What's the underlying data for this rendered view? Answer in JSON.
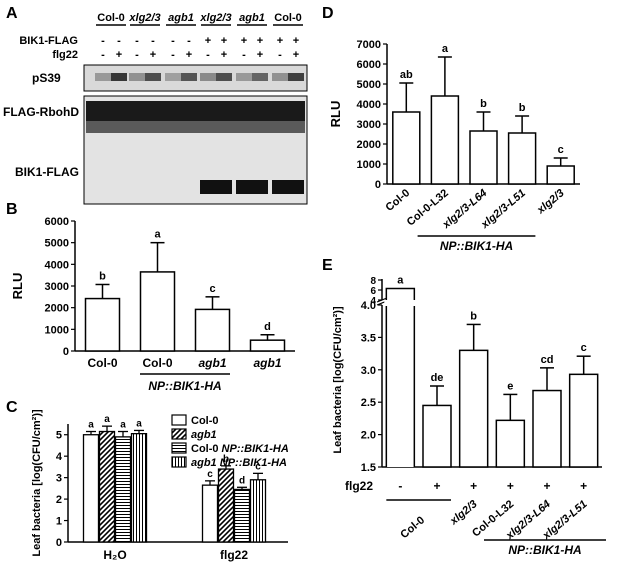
{
  "panels": {
    "A": {
      "letter": "A",
      "genotypes": [
        "Col-0",
        "xlg2/3",
        "agb1",
        "xlg2/3",
        "agb1",
        "Col-0"
      ],
      "genotype_italic": [
        false,
        true,
        true,
        true,
        true,
        false
      ],
      "rows": [
        {
          "label": "BIK1-FLAG",
          "signs": [
            "-",
            "-",
            "-",
            "-",
            "-",
            "-",
            "+",
            "+",
            "+",
            "+",
            "+",
            "+"
          ]
        },
        {
          "label": "flg22",
          "signs": [
            "-",
            "+",
            "-",
            "+",
            "-",
            "+",
            "-",
            "+",
            "-",
            "+",
            "-",
            "+"
          ]
        }
      ],
      "blot_labels": [
        "pS39",
        "FLAG-RbohD",
        "BIK1-FLAG"
      ]
    },
    "B": {
      "letter": "B",
      "chart_data": {
        "type": "bar",
        "ylabel": "RLU",
        "ylim": [
          0,
          6000
        ],
        "yticks": [
          0,
          1000,
          2000,
          3000,
          4000,
          5000,
          6000
        ],
        "categories": [
          "Col-0",
          "Col-0",
          "agb1",
          "agb1"
        ],
        "category_italic": [
          false,
          false,
          true,
          true
        ],
        "values": [
          2420,
          3650,
          1920,
          500
        ],
        "errors": [
          650,
          1350,
          580,
          250
        ],
        "letters": [
          "b",
          "a",
          "c",
          "d"
        ],
        "group_label": "NP::BIK1-HA"
      }
    },
    "C": {
      "letter": "C",
      "chart_data": {
        "type": "bar",
        "ylabel": "Leaf bacteria [log(CFU/cm²)]",
        "ylim": [
          0,
          5.5
        ],
        "yticks": [
          0,
          1,
          2,
          3,
          4,
          5
        ],
        "categories": [
          "H₂O",
          "flg22"
        ],
        "series": [
          {
            "name": "Col-0",
            "values": [
              5.0,
              2.65
            ],
            "errors": [
              0.15,
              0.2
            ],
            "letters": [
              "a",
              "c"
            ]
          },
          {
            "name": "agb1",
            "values": [
              5.15,
              3.4
            ],
            "errors": [
              0.25,
              0.15
            ],
            "letters": [
              "a",
              "b"
            ]
          },
          {
            "name": "Col-0 NP::BIK1-HA",
            "values": [
              4.9,
              2.45
            ],
            "errors": [
              0.25,
              0.1
            ],
            "letters": [
              "a",
              "d"
            ]
          },
          {
            "name": "agb1 NP::BIK1-HA",
            "values": [
              5.05,
              2.9
            ],
            "errors": [
              0.15,
              0.3
            ],
            "letters": [
              "a",
              "c"
            ]
          }
        ],
        "legend_placement": "top-right"
      }
    },
    "D": {
      "letter": "D",
      "chart_data": {
        "type": "bar",
        "ylabel": "RLU",
        "ylim": [
          0,
          7000
        ],
        "yticks": [
          0,
          1000,
          2000,
          3000,
          4000,
          5000,
          6000,
          7000
        ],
        "categories": [
          "Col-0",
          "Col-0-L32",
          "xlg2/3-L64",
          "xlg2/3-L51",
          "xlg2/3"
        ],
        "category_italic": [
          false,
          false,
          true,
          true,
          true
        ],
        "values": [
          3600,
          4400,
          2650,
          2550,
          900
        ],
        "errors": [
          1450,
          1950,
          950,
          850,
          400
        ],
        "letters": [
          "ab",
          "a",
          "b",
          "b",
          "c"
        ],
        "group_label": "NP::BIK1-HA"
      }
    },
    "E": {
      "letter": "E",
      "chart_data": {
        "type": "bar",
        "ylabel": "Leaf bacteria [log(CFU/cm²)]",
        "ylim": [
          1.5,
          6
        ],
        "yticks_lower": [
          1.5,
          2.0,
          2.5,
          3.0,
          3.5,
          4.0
        ],
        "yticks_upper": [
          4,
          6,
          8
        ],
        "axis_break": true,
        "categories": [
          "Col-0",
          "Col-0",
          "xlg2/3",
          "Col-0-L32",
          "xlg2/3-L64",
          "xlg2/3-L51"
        ],
        "category_italic": [
          false,
          false,
          true,
          false,
          true,
          true
        ],
        "flg22": [
          "-",
          "+",
          "+",
          "+",
          "+",
          "+"
        ],
        "values": [
          6.3,
          2.45,
          3.3,
          2.22,
          2.68,
          2.93
        ],
        "errors": [
          0,
          0.3,
          0.4,
          0.4,
          0.35,
          0.28
        ],
        "letters": [
          "a",
          "de",
          "b",
          "e",
          "cd",
          "c"
        ],
        "row_label": "flg22",
        "bottom_labels": [
          "Col-0",
          "xlg2/3",
          "Col-0-L32",
          "xlg2/3-L64",
          "xlg2/3-L51"
        ],
        "group_label": "NP::BIK1-HA"
      }
    }
  }
}
